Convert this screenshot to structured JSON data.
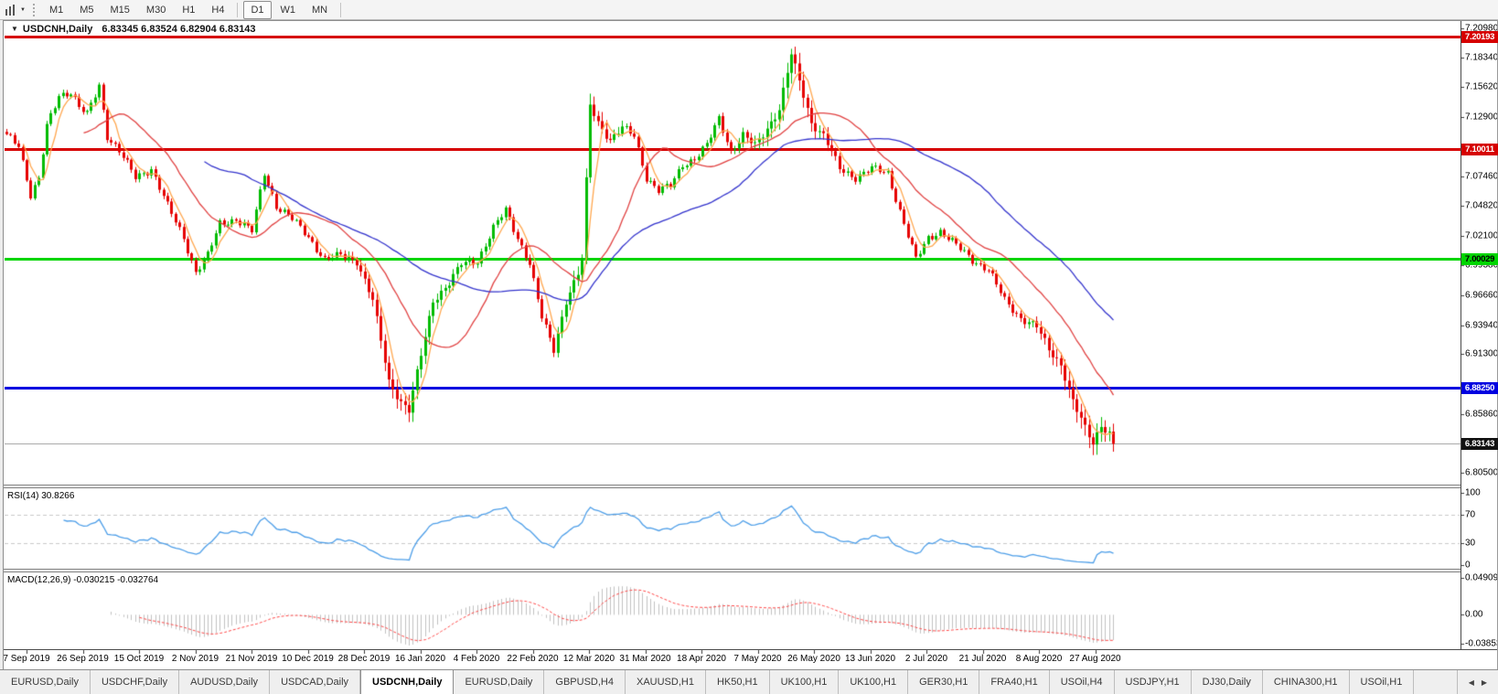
{
  "toolbar": {
    "timeframes": [
      {
        "label": "M1",
        "active": false
      },
      {
        "label": "M5",
        "active": false
      },
      {
        "label": "M15",
        "active": false
      },
      {
        "label": "M30",
        "active": false
      },
      {
        "label": "H1",
        "active": false
      },
      {
        "label": "H4",
        "active": false
      },
      {
        "label": "D1",
        "active": true
      },
      {
        "label": "W1",
        "active": false
      },
      {
        "label": "MN",
        "active": false
      }
    ]
  },
  "chart": {
    "title_symbol": "USDCNH,Daily",
    "ohlc_text": "6.83345 6.83524 6.82904 6.83143"
  },
  "price_axis": {
    "ticks": [
      "7.20980",
      "7.18340",
      "7.15620",
      "7.12900",
      "7.07460",
      "7.04820",
      "7.02100",
      "6.99380",
      "6.96660",
      "6.93940",
      "6.91300",
      "6.85860",
      "6.80500"
    ]
  },
  "dates": [
    "7 Sep 2019",
    "26 Sep 2019",
    "15 Oct 2019",
    "2 Nov 2019",
    "21 Nov 2019",
    "10 Dec 2019",
    "28 Dec 2019",
    "16 Jan 2020",
    "4 Feb 2020",
    "22 Feb 2020",
    "12 Mar 2020",
    "31 Mar 2020",
    "18 Apr 2020",
    "7 May 2020",
    "26 May 2020",
    "13 Jun 2020",
    "2 Jul 2020",
    "21 Jul 2020",
    "8 Aug 2020",
    "27 Aug 2020"
  ],
  "tabs": [
    {
      "label": "EURUSD,Daily",
      "active": false
    },
    {
      "label": "USDCHF,Daily",
      "active": false
    },
    {
      "label": "AUDUSD,Daily",
      "active": false
    },
    {
      "label": "USDCAD,Daily",
      "active": false
    },
    {
      "label": "USDCNH,Daily",
      "active": true
    },
    {
      "label": "EURUSD,Daily",
      "active": false
    },
    {
      "label": "GBPUSD,H4",
      "active": false
    },
    {
      "label": "XAUUSD,H1",
      "active": false
    },
    {
      "label": "HK50,H1",
      "active": false
    },
    {
      "label": "UK100,H1",
      "active": false
    },
    {
      "label": "UK100,H1",
      "active": false
    },
    {
      "label": "GER30,H1",
      "active": false
    },
    {
      "label": "FRA40,H1",
      "active": false
    },
    {
      "label": "USOil,H4",
      "active": false
    },
    {
      "label": "USDJPY,H1",
      "active": false
    },
    {
      "label": "DJ30,Daily",
      "active": false
    },
    {
      "label": "CHINA300,H1",
      "active": false
    },
    {
      "label": "USOil,H1",
      "active": false
    }
  ],
  "colors": {
    "up": "#00BB00",
    "down": "#E60000",
    "ma_fast": "#FFA64D",
    "ma_mid": "#E04040",
    "ma_slow": "#3333CC",
    "rsi": "#4D9EE8",
    "rsi_level": "#C8C8C8",
    "hist": "#C0C0C0",
    "signal": "#FF4444",
    "line_red": "#D60000",
    "line_green": "#00D500",
    "line_blue": "#0000E0",
    "line_current": "#AAAAAA",
    "box_black": "#111111"
  },
  "chart_data": {
    "type": "candlestick",
    "symbol": "USDCNH",
    "timeframe": "Daily",
    "current": {
      "open": 6.83345,
      "high": 6.83524,
      "low": 6.82904,
      "close": 6.83143
    },
    "current_price_label": "6.83143",
    "horizontal_lines": [
      {
        "price": 7.20193,
        "label": "7.20193",
        "color_key": "line_red",
        "text": "#FFFFFF"
      },
      {
        "price": 7.10011,
        "label": "7.10011",
        "color_key": "line_red",
        "text": "#FFFFFF"
      },
      {
        "price": 7.00029,
        "label": "7.00029",
        "color_key": "line_green",
        "text": "#000000"
      },
      {
        "price": 6.8825,
        "label": "6.88250",
        "color_key": "line_blue",
        "text": "#FFFFFF"
      }
    ],
    "price_range_visible": [
      6.805,
      7.2098
    ],
    "candle_count": 276,
    "close_anchors": [
      [
        0,
        7.112
      ],
      [
        3,
        7.104
      ],
      [
        6,
        7.058
      ],
      [
        8,
        7.072
      ],
      [
        10,
        7.12
      ],
      [
        13,
        7.149
      ],
      [
        16,
        7.152
      ],
      [
        18,
        7.138
      ],
      [
        20,
        7.131
      ],
      [
        23,
        7.158
      ],
      [
        25,
        7.112
      ],
      [
        28,
        7.098
      ],
      [
        32,
        7.074
      ],
      [
        36,
        7.082
      ],
      [
        40,
        7.048
      ],
      [
        44,
        7.019
      ],
      [
        47,
        6.988
      ],
      [
        50,
        7.003
      ],
      [
        53,
        7.032
      ],
      [
        57,
        7.036
      ],
      [
        61,
        7.025
      ],
      [
        64,
        7.078
      ],
      [
        67,
        7.048
      ],
      [
        71,
        7.036
      ],
      [
        75,
        7.02
      ],
      [
        79,
        6.999
      ],
      [
        83,
        7.003
      ],
      [
        87,
        6.998
      ],
      [
        91,
        6.962
      ],
      [
        95,
        6.888
      ],
      [
        98,
        6.87
      ],
      [
        100,
        6.862
      ],
      [
        103,
        6.912
      ],
      [
        106,
        6.962
      ],
      [
        110,
        6.978
      ],
      [
        113,
        6.995
      ],
      [
        117,
        6.998
      ],
      [
        121,
        7.028
      ],
      [
        124,
        7.044
      ],
      [
        127,
        7.019
      ],
      [
        130,
        6.996
      ],
      [
        133,
        6.946
      ],
      [
        136,
        6.917
      ],
      [
        139,
        6.962
      ],
      [
        142,
        6.986
      ],
      [
        143,
        7.0
      ],
      [
        145,
        7.14
      ],
      [
        147,
        7.124
      ],
      [
        150,
        7.108
      ],
      [
        153,
        7.119
      ],
      [
        156,
        7.112
      ],
      [
        159,
        7.074
      ],
      [
        162,
        7.062
      ],
      [
        165,
        7.066
      ],
      [
        168,
        7.086
      ],
      [
        171,
        7.091
      ],
      [
        174,
        7.103
      ],
      [
        177,
        7.128
      ],
      [
        180,
        7.098
      ],
      [
        183,
        7.112
      ],
      [
        186,
        7.103
      ],
      [
        189,
        7.119
      ],
      [
        192,
        7.136
      ],
      [
        195,
        7.186
      ],
      [
        197,
        7.162
      ],
      [
        200,
        7.124
      ],
      [
        203,
        7.112
      ],
      [
        207,
        7.082
      ],
      [
        211,
        7.074
      ],
      [
        215,
        7.082
      ],
      [
        219,
        7.078
      ],
      [
        223,
        7.032
      ],
      [
        226,
        6.999
      ],
      [
        229,
        7.019
      ],
      [
        232,
        7.025
      ],
      [
        236,
        7.012
      ],
      [
        240,
        6.999
      ],
      [
        244,
        6.99
      ],
      [
        248,
        6.962
      ],
      [
        252,
        6.946
      ],
      [
        256,
        6.938
      ],
      [
        259,
        6.917
      ],
      [
        262,
        6.904
      ],
      [
        265,
        6.87
      ],
      [
        268,
        6.845
      ],
      [
        270,
        6.832
      ],
      [
        272,
        6.849
      ],
      [
        274,
        6.841
      ],
      [
        275,
        6.83143
      ]
    ],
    "moving_averages": [
      {
        "name": "fast",
        "period": 5,
        "color_key": "ma_fast"
      },
      {
        "name": "medium",
        "period": 20,
        "color_key": "ma_mid"
      },
      {
        "name": "slow",
        "period": 50,
        "color_key": "ma_slow"
      }
    ],
    "indicators": {
      "rsi": {
        "label": "RSI(14) 30.8266",
        "period": 14,
        "current": 30.8266,
        "levels": [
          70,
          30
        ],
        "axis_labels": [
          "100",
          "70",
          "30",
          "0"
        ]
      },
      "macd": {
        "label": "MACD(12,26,9) -0.030215 -0.032764",
        "fast": 12,
        "slow": 26,
        "signal_period": 9,
        "macd_current": -0.030215,
        "signal_current": -0.032764,
        "axis_labels": [
          "0.049097",
          "0.00",
          "-0.03853"
        ]
      }
    }
  }
}
